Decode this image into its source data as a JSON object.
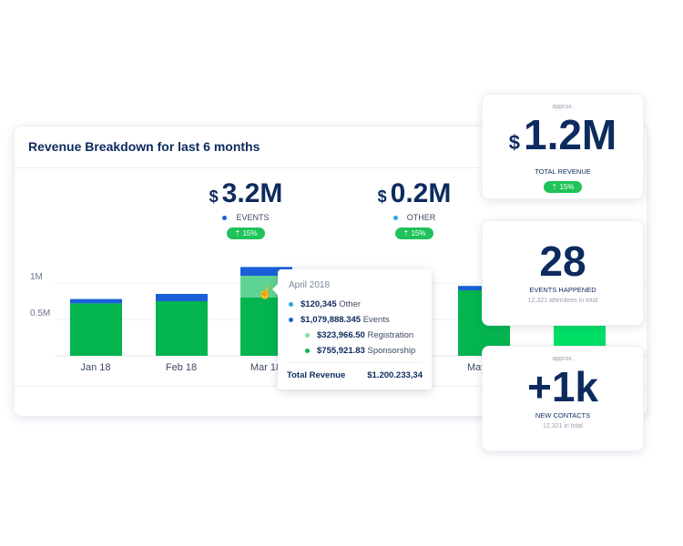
{
  "main": {
    "title": "Revenue Breakdown for last 6 months",
    "kpis": [
      {
        "currency": "$",
        "value": "3.2M",
        "legend": "EVENTS",
        "legend_color": "#1a5fd8",
        "badge": "⇡ 15%"
      },
      {
        "currency": "$",
        "value": "0.2M",
        "legend": "OTHER",
        "legend_color": "#29a8e0",
        "badge": "⇡ 15%"
      }
    ]
  },
  "chart_data": {
    "type": "bar",
    "stacked": true,
    "ylim": [
      0,
      1.25
    ],
    "y_ticks": [
      "0.5M",
      "1M"
    ],
    "y_tick_values": [
      0.5,
      1
    ],
    "categories": [
      "Jan 18",
      "Feb 18",
      "Mar 18",
      "May 18",
      ""
    ],
    "series": [
      {
        "name": "Sponsorship",
        "color": "#04b54f",
        "values": [
          0.72,
          0.75,
          0.8,
          0.9,
          0.85
        ]
      },
      {
        "name": "Registration",
        "color": "#5fd393",
        "values": [
          0,
          0,
          0.3,
          0,
          0
        ]
      },
      {
        "name": "Events",
        "color": "#1a5fd8",
        "values": [
          0.06,
          0.1,
          0.12,
          0.06,
          0
        ]
      }
    ],
    "highlight_index": 2,
    "last_bar_color": "#00e066",
    "grid": true
  },
  "tooltip": {
    "title": "April 2018",
    "rows": [
      {
        "amount": "$120,345",
        "label": "Other",
        "color": "#29a8e0",
        "indent": false
      },
      {
        "amount": "$1,079,888.345",
        "label": "Events",
        "color": "#1a5fd8",
        "indent": false
      },
      {
        "amount": "$323,966.50",
        "label": "Registration",
        "color": "#7fe0a8",
        "indent": true
      },
      {
        "amount": "$755,921.83",
        "label": "Sponsorship",
        "color": "#04b54f",
        "indent": true
      }
    ],
    "total_label": "Total Revenue",
    "total_value": "$1.200.233,34"
  },
  "cards": [
    {
      "approx": "approx.",
      "currency": "$",
      "value": "1.2M",
      "label": "TOTAL REVENUE",
      "badge": "⇡ 15%"
    },
    {
      "value": "28",
      "label": "EVENTS HAPPENED",
      "sub": "12,321 attendees in total"
    },
    {
      "approx": "approx.",
      "value": "+1k",
      "label": "NEW CONTACTS",
      "sub": "12,321 in total"
    }
  ]
}
